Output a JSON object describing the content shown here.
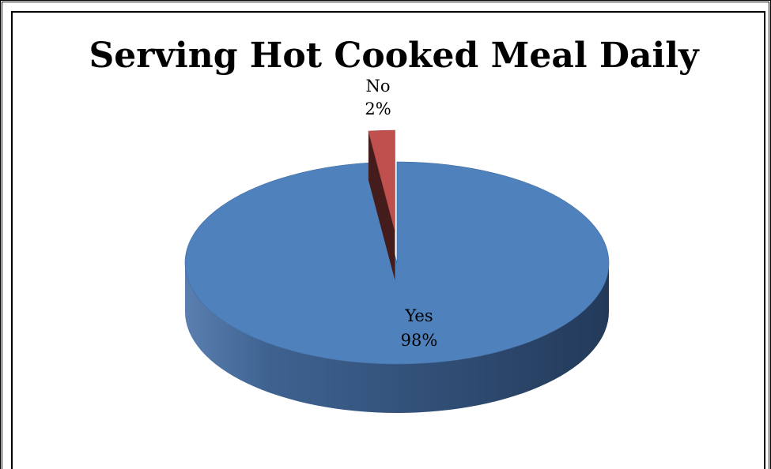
{
  "chart_data": {
    "type": "pie",
    "title": "Serving Hot Cooked Meal Daily",
    "slices": [
      {
        "label": "Yes",
        "value": 98,
        "display": "98%",
        "color": "#4f81bd"
      },
      {
        "label": "No",
        "value": 2,
        "display": "2%",
        "color": "#c0504d"
      }
    ],
    "exploded": [
      "No"
    ],
    "style": "3d"
  }
}
